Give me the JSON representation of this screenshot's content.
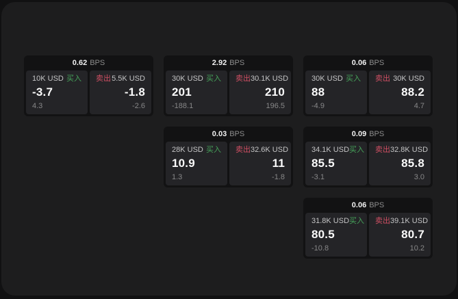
{
  "labels": {
    "bps_unit": "BPS",
    "buy": "买入",
    "sell": "卖出"
  },
  "colors": {
    "buy_green": "#46a35a",
    "sell_red": "#cf4f63",
    "surface": "#1d1d1e",
    "card_bg": "#121213",
    "panel_bg": "#242427"
  },
  "cards": [
    {
      "bps": "0.62",
      "buy": {
        "amount": "10K USD",
        "price": "-3.7",
        "change": "4.3"
      },
      "sell": {
        "amount": "5.5K USD",
        "price": "-1.8",
        "change": "-2.6"
      }
    },
    {
      "bps": "2.92",
      "buy": {
        "amount": "30K USD",
        "price": "201",
        "change": "-188.1"
      },
      "sell": {
        "amount": "30.1K USD",
        "price": "210",
        "change": "196.5"
      }
    },
    {
      "bps": "0.06",
      "buy": {
        "amount": "30K USD",
        "price": "88",
        "change": "-4.9"
      },
      "sell": {
        "amount": "30K USD",
        "price": "88.2",
        "change": "4.7"
      }
    },
    {
      "bps": "0.03",
      "buy": {
        "amount": "28K USD",
        "price": "10.9",
        "change": "1.3"
      },
      "sell": {
        "amount": "32.6K USD",
        "price": "11",
        "change": "-1.8"
      }
    },
    {
      "bps": "0.09",
      "buy": {
        "amount": "34.1K USD",
        "price": "85.5",
        "change": "-3.1"
      },
      "sell": {
        "amount": "32.8K USD",
        "price": "85.8",
        "change": "3.0"
      }
    },
    {
      "bps": "0.06",
      "buy": {
        "amount": "31.8K USD",
        "price": "80.5",
        "change": "-10.8"
      },
      "sell": {
        "amount": "39.1K USD",
        "price": "80.7",
        "change": "10.2"
      }
    }
  ]
}
